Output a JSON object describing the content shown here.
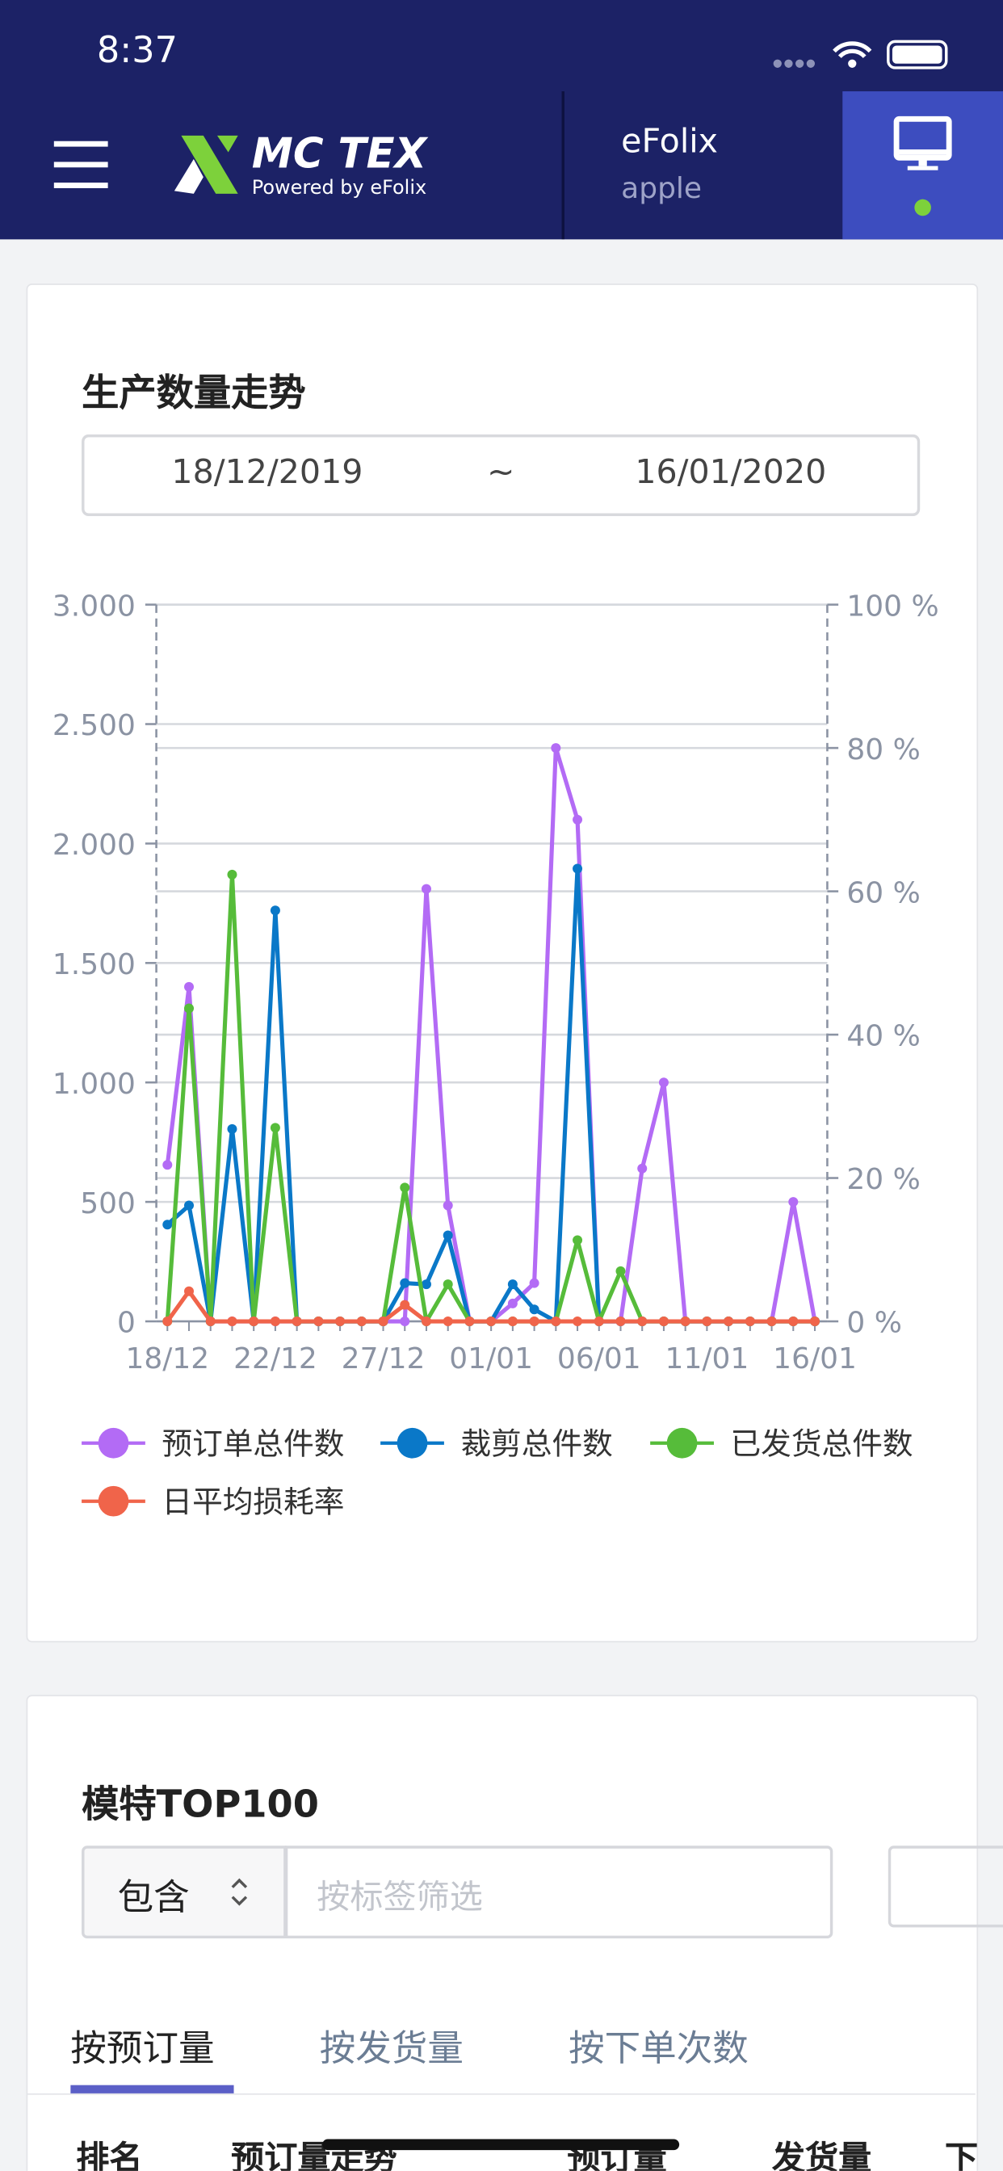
{
  "status_bar": {
    "time": "8:37"
  },
  "header": {
    "logo": "MC TEX",
    "logo_sub": "Powered by eFolix",
    "company": "eFolix",
    "user": "apple"
  },
  "chart_card": {
    "title": "生产数量走势",
    "date_from": "18/12/2019",
    "date_sep": "~",
    "date_to": "16/01/2020"
  },
  "chart_data": {
    "type": "line",
    "categories": [
      "18/12",
      null,
      null,
      null,
      null,
      "22/12",
      null,
      null,
      null,
      null,
      "27/12",
      null,
      null,
      null,
      null,
      "01/01",
      null,
      null,
      null,
      null,
      "06/01",
      null,
      null,
      null,
      null,
      "11/01",
      null,
      null,
      null,
      null,
      "16/01"
    ],
    "series": [
      {
        "name": "预订单总件数",
        "color": "#b36bf5",
        "values": [
          655,
          1400,
          0,
          0,
          0,
          0,
          0,
          0,
          0,
          0,
          0,
          0,
          1810,
          485,
          0,
          0,
          75,
          160,
          2400,
          2100,
          0,
          0,
          640,
          1000,
          0,
          0,
          0,
          0,
          0,
          500,
          0
        ]
      },
      {
        "name": "裁剪总件数",
        "color": "#0a78c8",
        "values": [
          405,
          485,
          0,
          805,
          0,
          1720,
          0,
          0,
          0,
          0,
          0,
          160,
          155,
          360,
          0,
          0,
          155,
          50,
          0,
          1895,
          0,
          0,
          0,
          0,
          0,
          0,
          0,
          0,
          0,
          0,
          0
        ]
      },
      {
        "name": "已发货总件数",
        "color": "#56bc3a",
        "values": [
          0,
          1310,
          0,
          1870,
          0,
          810,
          0,
          0,
          0,
          0,
          0,
          560,
          0,
          155,
          0,
          0,
          0,
          0,
          0,
          340,
          0,
          210,
          0,
          0,
          0,
          0,
          0,
          0,
          0,
          0,
          0
        ]
      },
      {
        "name": "日平均损耗率",
        "color": "#f0644a",
        "axis": "y2",
        "values": [
          0,
          4.2,
          0,
          0,
          0,
          0,
          0,
          0,
          0,
          0,
          0,
          2.3,
          0,
          0,
          0,
          0,
          0,
          0,
          0,
          0,
          0,
          0,
          0,
          0,
          0,
          0,
          0,
          0,
          0,
          0,
          0
        ]
      }
    ],
    "ylim": [
      0,
      3000
    ],
    "yticks": [
      0,
      {
        "value": 500,
        "label": "500"
      },
      {
        "value": 1000,
        "label": "1.000"
      },
      {
        "value": 1500,
        "label": "1.500"
      },
      {
        "value": 2000,
        "label": "2.000"
      },
      {
        "value": 2500,
        "label": "2.500"
      },
      {
        "value": 3000,
        "label": "3.000"
      }
    ],
    "y2lim": [
      0,
      100
    ],
    "y2ticks": [
      {
        "value": 0,
        "label": "0 %"
      },
      {
        "value": 20,
        "label": "20 %"
      },
      {
        "value": 40,
        "label": "40 %"
      },
      {
        "value": 60,
        "label": "60 %"
      },
      {
        "value": 80,
        "label": "80 %"
      },
      {
        "value": 100,
        "label": "100 %"
      }
    ],
    "grid": true
  },
  "top_card": {
    "title": "模特TOP100",
    "select": "包含",
    "placeholder": "按标签筛选",
    "tabs": [
      "按预订量",
      "按发货量",
      "按下单次数"
    ],
    "columns": [
      "排名",
      "预订量走势",
      "预订量",
      "发货量",
      "下"
    ]
  }
}
